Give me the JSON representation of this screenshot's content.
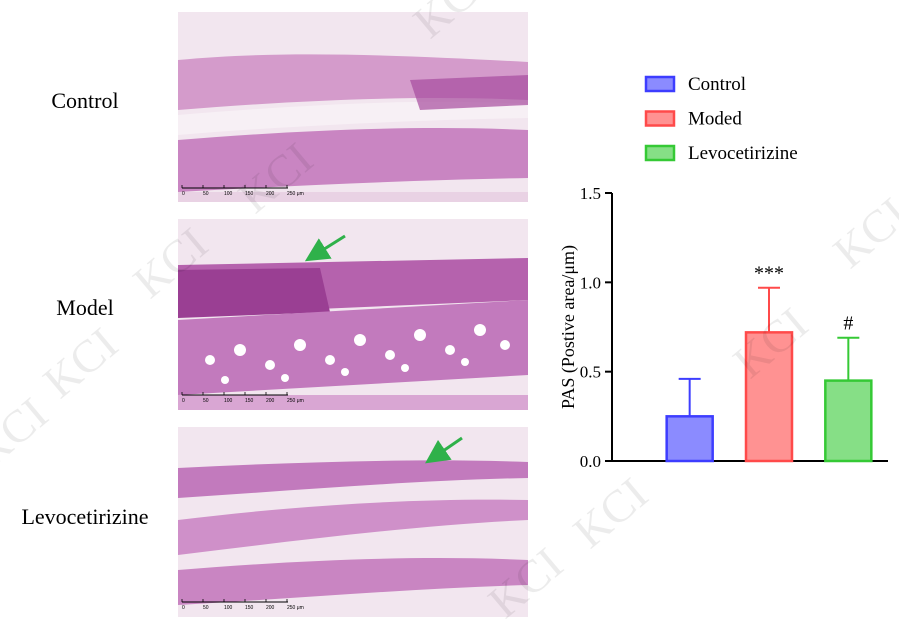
{
  "panels": {
    "labels": [
      "Control",
      "Model",
      "Levocetirizine"
    ],
    "scale_bar_labels": [
      "0",
      "50",
      "100",
      "150",
      "200",
      "250 μm"
    ]
  },
  "watermark": "KCI",
  "chart_data": {
    "type": "bar",
    "ylabel": "PAS (Postive area/μm)",
    "categories": [
      null,
      null,
      null
    ],
    "series": [
      {
        "name": "Control",
        "color": "#3d3dff",
        "values": [
          0.25,
          null,
          null
        ],
        "errors": [
          0.21,
          null,
          null
        ],
        "annotations": [
          null,
          null,
          null
        ]
      },
      {
        "name": "Moded",
        "color": "#ff4a4a",
        "values": [
          null,
          0.72,
          null
        ],
        "errors": [
          null,
          0.25,
          null
        ],
        "annotations": [
          null,
          "***",
          null
        ]
      },
      {
        "name": "Levocetirizine",
        "color": "#35c935",
        "values": [
          null,
          null,
          0.45
        ],
        "errors": [
          null,
          null,
          0.24
        ],
        "annotations": [
          null,
          null,
          "#"
        ]
      }
    ],
    "ylim": [
      0,
      1.5
    ],
    "yticks": [
      {
        "value": 0,
        "label": "0.0"
      },
      {
        "value": 0.5,
        "label": "0.5"
      },
      {
        "value": 1,
        "label": "1.0"
      },
      {
        "value": 1.5,
        "label": "1.5"
      }
    ]
  }
}
